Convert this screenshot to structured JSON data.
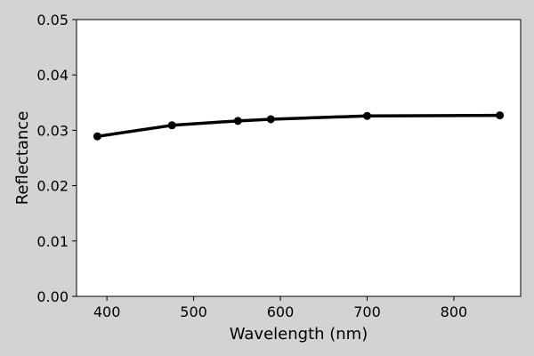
{
  "chart_data": {
    "type": "line",
    "title": "",
    "xlabel": "Wavelength (nm)",
    "ylabel": "Reflectance",
    "xlim": [
      365,
      877
    ],
    "ylim": [
      0,
      0.05
    ],
    "x_ticks": [
      400,
      500,
      600,
      700,
      800
    ],
    "x_tick_labels": [
      "400",
      "500",
      "600",
      "700",
      "800"
    ],
    "y_ticks": [
      0,
      0.01,
      0.02,
      0.03,
      0.04,
      0.05
    ],
    "y_tick_labels": [
      "0.00",
      "0.01",
      "0.02",
      "0.03",
      "0.04",
      "0.05"
    ],
    "grid": false,
    "legend": "none",
    "series": [
      {
        "color": "#000000",
        "marker": "circle",
        "x": [
          389,
          475,
          551,
          589,
          700,
          853
        ],
        "y": [
          0.0289,
          0.0309,
          0.0317,
          0.032,
          0.0326,
          0.0327
        ]
      }
    ]
  },
  "colors": {
    "figure_background": "#d3d3d3",
    "plot_background": "#ffffff",
    "line": "#000000"
  }
}
